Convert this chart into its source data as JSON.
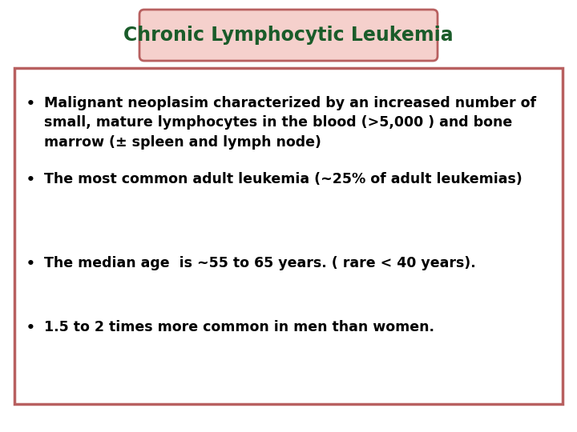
{
  "title": "Chronic Lymphocytic Leukemia",
  "title_color": "#1a5c2a",
  "title_bg_color": "#f5d0cc",
  "title_border_color": "#b86060",
  "title_fontsize": 17,
  "content_border_color": "#b86060",
  "bullet_points": [
    "Malignant neoplasim characterized by an increased number of\nsmall, mature lymphocytes in the blood (>5,000 ) and bone\nmarrow (± spleen and lymph node)",
    "The most common adult leukemia (~25% of adult leukemias)",
    "The median age  is ~55 to 65 years. ( rare < 40 years).",
    "1.5 to 2 times more common in men than women."
  ],
  "bullet_color": "#000000",
  "bullet_fontsize": 12.5,
  "bg_color": "#ffffff",
  "fig_width": 7.2,
  "fig_height": 5.4,
  "dpi": 100
}
